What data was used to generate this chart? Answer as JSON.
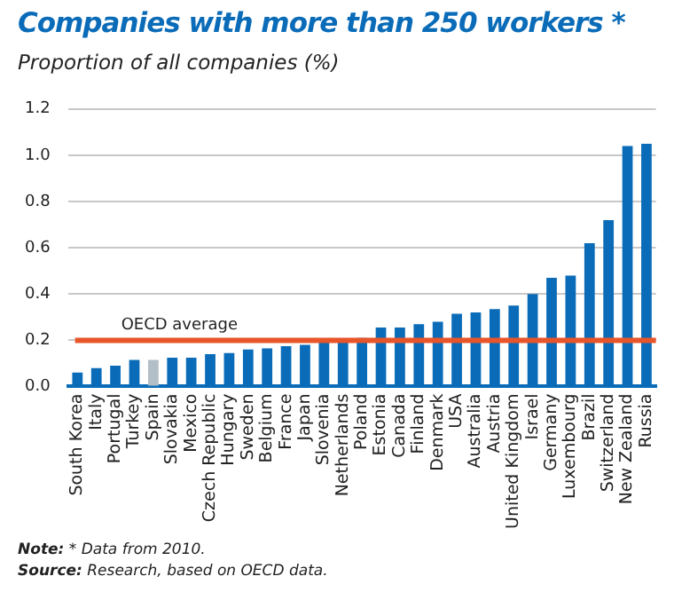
{
  "chart_data": {
    "type": "bar",
    "title": "Companies with more than 250 workers *",
    "subtitle": "Proportion of all companies (%)",
    "categories": [
      "South Korea",
      "Italy",
      "Portugal",
      "Turkey",
      "Spain",
      "Slovakia",
      "Mexico",
      "Czech Republic",
      "Hungary",
      "Sweden",
      "Belgium",
      "France",
      "Japan",
      "Slovenia",
      "Netherlands",
      "Poland",
      "Estonia",
      "Canada",
      "Finland",
      "Denmark",
      "USA",
      "Australia",
      "Austria",
      "United Kingdom",
      "Israel",
      "Germany",
      "Luxembourg",
      "Brazil",
      "Switzerland",
      "New Zealand",
      "Russia"
    ],
    "values": [
      0.06,
      0.08,
      0.09,
      0.115,
      0.115,
      0.125,
      0.125,
      0.14,
      0.145,
      0.16,
      0.165,
      0.175,
      0.18,
      0.195,
      0.195,
      0.21,
      0.255,
      0.255,
      0.27,
      0.28,
      0.315,
      0.32,
      0.335,
      0.35,
      0.4,
      0.47,
      0.48,
      0.62,
      0.72,
      1.04,
      1.05
    ],
    "colors": [
      "#0a6cb8",
      "#0a6cb8",
      "#0a6cb8",
      "#0a6cb8",
      "#b3bfc6",
      "#0a6cb8",
      "#0a6cb8",
      "#0a6cb8",
      "#0a6cb8",
      "#0a6cb8",
      "#0a6cb8",
      "#0a6cb8",
      "#0a6cb8",
      "#0a6cb8",
      "#0a6cb8",
      "#0a6cb8",
      "#0a6cb8",
      "#0a6cb8",
      "#0a6cb8",
      "#0a6cb8",
      "#0a6cb8",
      "#0a6cb8",
      "#0a6cb8",
      "#0a6cb8",
      "#0a6cb8",
      "#0a6cb8",
      "#0a6cb8",
      "#0a6cb8",
      "#0a6cb8",
      "#0a6cb8",
      "#0a6cb8"
    ],
    "ylim": [
      0,
      1.2
    ],
    "yticks": [
      {
        "value": 0,
        "label": "0.0"
      },
      0.2,
      0.4,
      0.6,
      0.8,
      {
        "value": 1,
        "label": "1.0"
      },
      1.2
    ],
    "grid": "y",
    "legend": false,
    "ref_lines": [
      {
        "axis": "y",
        "value": 0.2,
        "label": "OECD average",
        "color": "#e8552a"
      }
    ],
    "annotations": [
      "Note: * Data from 2010.",
      "Source: Research, based on OECD data."
    ]
  }
}
